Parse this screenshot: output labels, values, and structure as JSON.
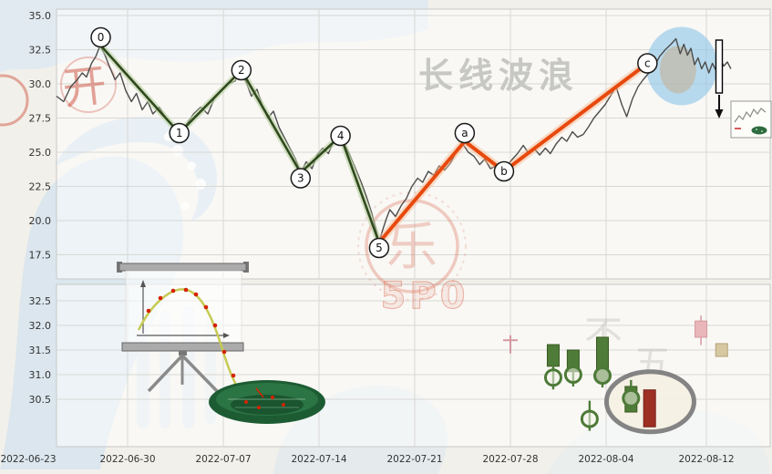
{
  "watermarks": {
    "title": "长线波浪",
    "stamp_char": "开",
    "seal_char": "乐",
    "seal_letters": "5P0",
    "faint_char_1": "不",
    "faint_char_2": "五"
  },
  "colors": {
    "grid": "#d8d8d4",
    "panel_border": "#c9c9c6",
    "axis_text": "#333333",
    "price": "#4d4d4d",
    "impulse": "#2f4a1e",
    "impulse_halo": "#b9cf9e",
    "corrective": "#e8490e",
    "corrective_halo": "#f5b78e",
    "highlight_blue": "#8ec6e8",
    "marker_green": "#4d7a37",
    "candle_green": "#4f7c38",
    "candle_green_stroke": "#39591f",
    "candle_red": "#9e2f23",
    "candle_red_stroke": "#731f17",
    "candle_pink": "#e9b7b9",
    "candle_pink_stroke": "#d598a0",
    "candle_tan": "#d6c9a2",
    "candle_tan_stroke": "#b3a276",
    "stamp_red": "#cc4a38",
    "watermark_gray": "#c7c7c3"
  },
  "chart_data": [
    {
      "type": "line",
      "title": "长线波浪",
      "xlabel": "",
      "ylabel": "",
      "ylim": [
        17.0,
        35.5
      ],
      "grid": true,
      "y_ticks": [
        35.0,
        32.5,
        30.0,
        27.5,
        25.0,
        22.5,
        20.0,
        17.5
      ],
      "x_tick_labels": [
        "2022-06-23",
        "2022-06-30",
        "2022-07-07",
        "2022-07-14",
        "2022-07-21",
        "2022-07-28",
        "2022-08-04",
        "2022-08-12"
      ],
      "price_line": [
        [
          0.0,
          29.1
        ],
        [
          0.01,
          28.7
        ],
        [
          0.02,
          29.8
        ],
        [
          0.029,
          30.3
        ],
        [
          0.036,
          30.8
        ],
        [
          0.042,
          30.5
        ],
        [
          0.049,
          31.5
        ],
        [
          0.055,
          32.0
        ],
        [
          0.061,
          32.8
        ],
        [
          0.068,
          32.1
        ],
        [
          0.074,
          31.3
        ],
        [
          0.082,
          30.3
        ],
        [
          0.089,
          30.8
        ],
        [
          0.097,
          29.5
        ],
        [
          0.105,
          28.7
        ],
        [
          0.112,
          29.3
        ],
        [
          0.12,
          28.1
        ],
        [
          0.128,
          28.7
        ],
        [
          0.135,
          27.8
        ],
        [
          0.144,
          28.3
        ],
        [
          0.153,
          27.5
        ],
        [
          0.163,
          26.9
        ],
        [
          0.172,
          26.4
        ],
        [
          0.183,
          27.1
        ],
        [
          0.192,
          27.8
        ],
        [
          0.202,
          28.3
        ],
        [
          0.212,
          27.8
        ],
        [
          0.221,
          28.9
        ],
        [
          0.23,
          29.5
        ],
        [
          0.24,
          30.0
        ],
        [
          0.25,
          30.2
        ],
        [
          0.257,
          30.9
        ],
        [
          0.266,
          30.1
        ],
        [
          0.273,
          29.1
        ],
        [
          0.281,
          29.6
        ],
        [
          0.289,
          28.3
        ],
        [
          0.296,
          27.5
        ],
        [
          0.304,
          28.0
        ],
        [
          0.312,
          26.8
        ],
        [
          0.319,
          26.1
        ],
        [
          0.327,
          25.3
        ],
        [
          0.335,
          24.5
        ],
        [
          0.342,
          23.5
        ],
        [
          0.35,
          24.3
        ],
        [
          0.358,
          23.8
        ],
        [
          0.365,
          24.8
        ],
        [
          0.373,
          25.3
        ],
        [
          0.381,
          24.9
        ],
        [
          0.388,
          25.8
        ],
        [
          0.396,
          26.2
        ],
        [
          0.404,
          25.5
        ],
        [
          0.411,
          24.8
        ],
        [
          0.419,
          23.8
        ],
        [
          0.427,
          22.8
        ],
        [
          0.434,
          21.8
        ],
        [
          0.442,
          20.5
        ],
        [
          0.447,
          19.5
        ],
        [
          0.452,
          18.4
        ],
        [
          0.457,
          19.3
        ],
        [
          0.462,
          20.1
        ],
        [
          0.467,
          20.8
        ],
        [
          0.475,
          20.3
        ],
        [
          0.483,
          21.1
        ],
        [
          0.49,
          21.6
        ],
        [
          0.498,
          22.5
        ],
        [
          0.506,
          23.1
        ],
        [
          0.513,
          22.8
        ],
        [
          0.521,
          23.6
        ],
        [
          0.529,
          23.3
        ],
        [
          0.536,
          24.0
        ],
        [
          0.544,
          23.7
        ],
        [
          0.552,
          24.2
        ],
        [
          0.559,
          24.9
        ],
        [
          0.568,
          25.7
        ],
        [
          0.577,
          25.0
        ],
        [
          0.585,
          24.7
        ],
        [
          0.593,
          24.1
        ],
        [
          0.6,
          24.5
        ],
        [
          0.608,
          23.8
        ],
        [
          0.616,
          24.0
        ],
        [
          0.623,
          23.5
        ],
        [
          0.631,
          24.0
        ],
        [
          0.639,
          24.5
        ],
        [
          0.646,
          24.9
        ],
        [
          0.654,
          25.5
        ],
        [
          0.662,
          24.9
        ],
        [
          0.669,
          25.3
        ],
        [
          0.677,
          24.8
        ],
        [
          0.685,
          25.3
        ],
        [
          0.692,
          24.9
        ],
        [
          0.7,
          25.6
        ],
        [
          0.708,
          26.1
        ],
        [
          0.715,
          25.8
        ],
        [
          0.723,
          26.5
        ],
        [
          0.73,
          26.1
        ],
        [
          0.738,
          26.3
        ],
        [
          0.746,
          26.9
        ],
        [
          0.753,
          27.5
        ],
        [
          0.761,
          28.0
        ],
        [
          0.769,
          28.5
        ],
        [
          0.776,
          29.1
        ],
        [
          0.784,
          29.8
        ],
        [
          0.792,
          28.5
        ],
        [
          0.799,
          27.6
        ],
        [
          0.807,
          28.9
        ],
        [
          0.815,
          29.8
        ],
        [
          0.822,
          30.3
        ],
        [
          0.83,
          30.8
        ],
        [
          0.838,
          31.3
        ],
        [
          0.845,
          32.0
        ],
        [
          0.853,
          32.5
        ],
        [
          0.861,
          32.9
        ],
        [
          0.868,
          33.3
        ],
        [
          0.874,
          32.2
        ],
        [
          0.879,
          32.9
        ],
        [
          0.884,
          32.1
        ],
        [
          0.889,
          32.6
        ],
        [
          0.894,
          31.4
        ],
        [
          0.899,
          31.9
        ],
        [
          0.904,
          31.1
        ],
        [
          0.909,
          31.6
        ],
        [
          0.914,
          30.8
        ],
        [
          0.919,
          31.5
        ],
        [
          0.925,
          30.9
        ],
        [
          0.93,
          31.8
        ],
        [
          0.935,
          31.3
        ],
        [
          0.94,
          31.6
        ],
        [
          0.945,
          31.1
        ]
      ],
      "elliott_waves": {
        "impulse": [
          {
            "label": "0",
            "x": 0.062,
            "price": 32.8,
            "side": "above"
          },
          {
            "label": "1",
            "x": 0.172,
            "price": 26.4,
            "side": "on"
          },
          {
            "label": "2",
            "x": 0.259,
            "price": 31.0,
            "side": "on"
          },
          {
            "label": "3",
            "x": 0.342,
            "price": 23.5,
            "side": "below"
          },
          {
            "label": "4",
            "x": 0.398,
            "price": 26.2,
            "side": "on"
          },
          {
            "label": "5",
            "x": 0.452,
            "price": 18.4,
            "side": "below"
          }
        ],
        "corrective": [
          {
            "label": "5",
            "x": 0.452,
            "price": 18.4,
            "side": "skip"
          },
          {
            "label": "a",
            "x": 0.572,
            "price": 25.8,
            "side": "above"
          },
          {
            "label": "b",
            "x": 0.627,
            "price": 23.6,
            "side": "on"
          },
          {
            "label": "c",
            "x": 0.828,
            "price": 31.5,
            "side": "on"
          }
        ]
      },
      "highlight": {
        "x": 0.876,
        "price": 31.3
      }
    },
    {
      "type": "candlestick",
      "grid": true,
      "y_ticks": [
        32.5,
        32.0,
        31.5,
        31.0,
        30.5
      ],
      "candles": [
        {
          "x": 0.636,
          "style": "doji",
          "color": "pink",
          "price": 31.7,
          "high": 31.8,
          "low": 31.43
        },
        {
          "x": 0.696,
          "style": "body",
          "color": "green",
          "open": 31.61,
          "close": 31.17
        },
        {
          "x": 0.724,
          "style": "body",
          "color": "green",
          "open": 31.5,
          "close": 31.06
        },
        {
          "x": 0.765,
          "style": "body",
          "color": "green",
          "open": 31.76,
          "close": 30.87
        },
        {
          "x": 0.805,
          "style": "body",
          "color": "green",
          "open": 30.76,
          "close": 30.24
        },
        {
          "x": 0.831,
          "style": "body",
          "color": "red",
          "open": 30.69,
          "close": 29.94
        },
        {
          "x": 0.903,
          "style": "body",
          "color": "pink",
          "open": 32.09,
          "close": 31.76,
          "high": 32.2,
          "low": 31.6
        },
        {
          "x": 0.932,
          "style": "body",
          "color": "tan",
          "open": 31.63,
          "close": 31.37
        }
      ],
      "circle_markers": [
        {
          "x": 0.696,
          "price": 30.94
        },
        {
          "x": 0.724,
          "price": 31.0
        },
        {
          "x": 0.765,
          "price": 30.98
        },
        {
          "x": 0.747,
          "price": 30.1
        },
        {
          "x": 0.805,
          "price": 30.52
        }
      ],
      "highlight_ellipse": {
        "x": 0.832,
        "price": 30.45
      }
    }
  ]
}
